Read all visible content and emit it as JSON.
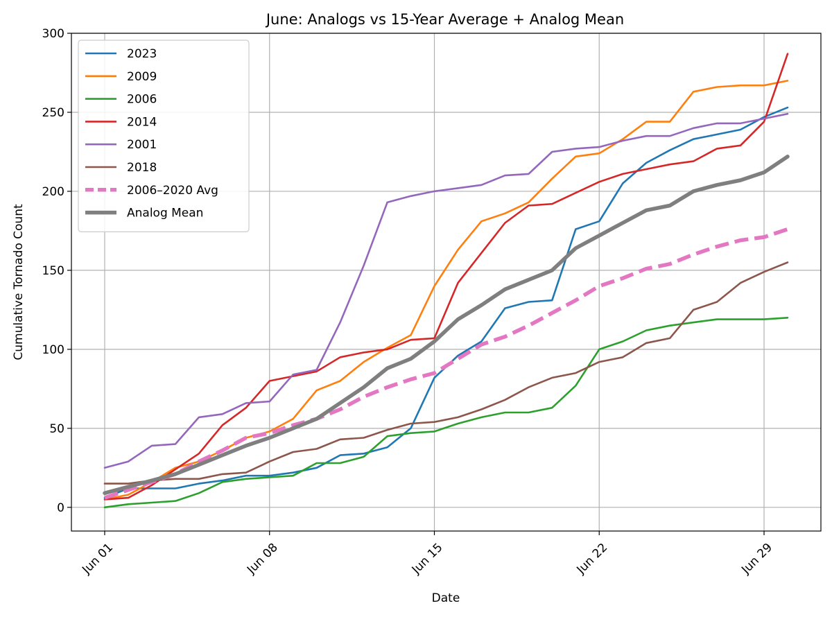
{
  "chart_data": {
    "type": "line",
    "title": "June: Analogs vs 15-Year Average + Analog Mean",
    "xlabel": "Date",
    "ylabel": "Cumulative Tornado Count",
    "x": [
      "Jun 01",
      "Jun 02",
      "Jun 03",
      "Jun 04",
      "Jun 05",
      "Jun 06",
      "Jun 07",
      "Jun 08",
      "Jun 09",
      "Jun 10",
      "Jun 11",
      "Jun 12",
      "Jun 13",
      "Jun 14",
      "Jun 15",
      "Jun 16",
      "Jun 17",
      "Jun 18",
      "Jun 19",
      "Jun 20",
      "Jun 21",
      "Jun 22",
      "Jun 23",
      "Jun 24",
      "Jun 25",
      "Jun 26",
      "Jun 27",
      "Jun 28",
      "Jun 29",
      "Jun 30"
    ],
    "x_ticks": [
      "Jun 01",
      "Jun 08",
      "Jun 15",
      "Jun 22",
      "Jun 29"
    ],
    "ylim": [
      -15,
      300
    ],
    "y_ticks": [
      0,
      50,
      100,
      150,
      200,
      250,
      300
    ],
    "grid": true,
    "legend_position": "top-left",
    "series": [
      {
        "name": "2023",
        "color": "#1f77b4",
        "style": "solid",
        "width": 2.6,
        "values": [
          6,
          12,
          12,
          12,
          15,
          17,
          20,
          20,
          22,
          25,
          33,
          34,
          38,
          50,
          82,
          96,
          105,
          126,
          130,
          131,
          176,
          181,
          205,
          218,
          226,
          233,
          236,
          239,
          247,
          253
        ]
      },
      {
        "name": "2009",
        "color": "#ff7f0e",
        "style": "solid",
        "width": 2.6,
        "values": [
          5,
          8,
          16,
          25,
          29,
          36,
          44,
          48,
          56,
          74,
          80,
          92,
          101,
          109,
          140,
          163,
          181,
          186,
          193,
          208,
          222,
          224,
          233,
          244,
          244,
          263,
          266,
          267,
          267,
          270
        ]
      },
      {
        "name": "2006",
        "color": "#2ca02c",
        "style": "solid",
        "width": 2.6,
        "values": [
          0,
          2,
          3,
          4,
          9,
          16,
          18,
          19,
          20,
          28,
          28,
          32,
          45,
          47,
          48,
          53,
          57,
          60,
          60,
          63,
          77,
          100,
          105,
          112,
          115,
          117,
          119,
          119,
          119,
          120
        ]
      },
      {
        "name": "2014",
        "color": "#d62728",
        "style": "solid",
        "width": 2.6,
        "values": [
          5,
          6,
          14,
          24,
          34,
          52,
          63,
          80,
          83,
          86,
          95,
          98,
          100,
          106,
          107,
          142,
          161,
          180,
          191,
          192,
          199,
          206,
          211,
          214,
          217,
          219,
          227,
          229,
          244,
          287
        ]
      },
      {
        "name": "2001",
        "color": "#9467bd",
        "style": "solid",
        "width": 2.6,
        "values": [
          25,
          29,
          39,
          40,
          57,
          59,
          66,
          67,
          84,
          87,
          117,
          153,
          193,
          197,
          200,
          202,
          204,
          210,
          211,
          225,
          227,
          228,
          232,
          235,
          235,
          240,
          243,
          243,
          246,
          249
        ]
      },
      {
        "name": "2018",
        "color": "#8c564b",
        "style": "solid",
        "width": 2.6,
        "values": [
          15,
          15,
          17,
          18,
          18,
          21,
          22,
          29,
          35,
          37,
          43,
          44,
          49,
          53,
          54,
          57,
          62,
          68,
          76,
          82,
          85,
          92,
          95,
          104,
          107,
          125,
          130,
          142,
          149,
          155
        ]
      },
      {
        "name": "2006–2020 Avg",
        "color": "#e377c2",
        "style": "dashed",
        "width": 5.5,
        "values": [
          6,
          11,
          16,
          21,
          29,
          36,
          44,
          47,
          52,
          56,
          62,
          70,
          76,
          81,
          85,
          94,
          103,
          108,
          115,
          123,
          131,
          140,
          145,
          151,
          154,
          160,
          165,
          169,
          171,
          176
        ]
      },
      {
        "name": "Analog Mean",
        "color": "#7f7f7f",
        "style": "solid",
        "width": 5.5,
        "values": [
          9,
          13,
          17,
          21,
          27,
          33,
          39,
          44,
          50,
          56,
          66,
          76,
          88,
          94,
          105,
          119,
          128,
          138,
          144,
          150,
          164,
          172,
          180,
          188,
          191,
          200,
          204,
          207,
          212,
          222
        ]
      }
    ]
  }
}
